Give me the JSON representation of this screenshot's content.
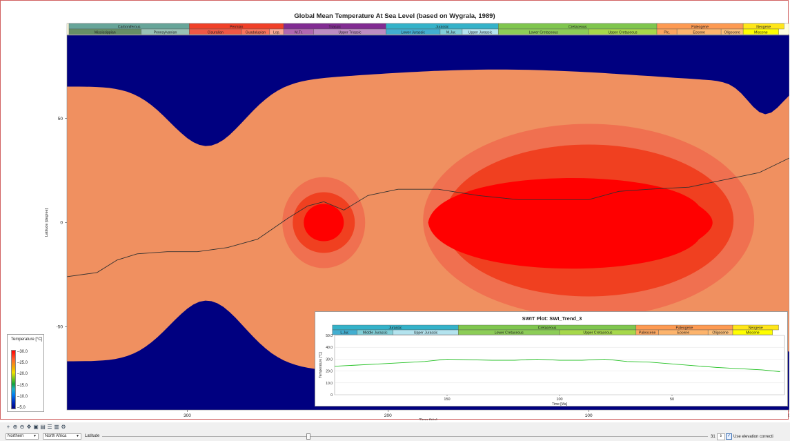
{
  "chart_data": [
    {
      "type": "heatmap",
      "title": "Global Mean Temperature At Sea Level (based on Wygrala, 1989)",
      "xlabel": "Time [Ma]",
      "ylabel": "Latitude [degree]",
      "xlim": [
        360,
        0
      ],
      "ylim": [
        -90,
        90
      ],
      "x_ticks": [
        300,
        200,
        100,
        0
      ],
      "y_ticks": [
        50,
        0,
        -50
      ],
      "colorbar": {
        "title": "Temperature [°C]",
        "ticks": [
          "30.0",
          "25.0",
          "20.0",
          "15.0",
          "10.0",
          "5.0"
        ]
      },
      "color_bands": [
        "#000080",
        "#0030c0",
        "#0060e0",
        "#0090f0",
        "#20b0d0",
        "#10a040",
        "#30c030",
        "#a0d820",
        "#f0e000",
        "#f0b000",
        "#f09060",
        "#f07050",
        "#f04020",
        "#ff0000"
      ],
      "trend_line": {
        "x": [
          360,
          345,
          335,
          325,
          310,
          295,
          280,
          265,
          250,
          240,
          232,
          222,
          210,
          195,
          175,
          155,
          135,
          115,
          100,
          85,
          70,
          50,
          30,
          15,
          0
        ],
        "y": [
          -26,
          -24,
          -18,
          -15,
          -14,
          -14,
          -12,
          -8,
          2,
          8,
          10,
          6,
          13,
          16,
          16,
          13,
          11,
          11,
          11,
          15,
          16,
          17,
          21,
          24,
          31
        ]
      },
      "geologic_periods": [
        {
          "name": "Carboniferous",
          "start": 359,
          "end": 299,
          "color": "#67a599"
        },
        {
          "name": "Permian",
          "start": 299,
          "end": 252,
          "color": "#f04028"
        },
        {
          "name": "Triassic",
          "start": 252,
          "end": 201,
          "color": "#812b92"
        },
        {
          "name": "Jurassic",
          "start": 201,
          "end": 145,
          "color": "#34b2c9"
        },
        {
          "name": "Cretaceous",
          "start": 145,
          "end": 66,
          "color": "#7fc64e"
        },
        {
          "name": "Paleogene",
          "start": 66,
          "end": 23,
          "color": "#fd9a52"
        },
        {
          "name": "Neogene",
          "start": 23,
          "end": 2.6,
          "color": "#ffe619"
        }
      ],
      "geologic_epochs": [
        {
          "name": "Mississippian",
          "start": 359,
          "end": 323,
          "color": "#678f66"
        },
        {
          "name": "Pennsylvanian",
          "start": 323,
          "end": 299,
          "color": "#99c2b5"
        },
        {
          "name": "Cisuralian",
          "start": 299,
          "end": 273,
          "color": "#ef5845"
        },
        {
          "name": "Guadalupian",
          "start": 273,
          "end": 259,
          "color": "#fb745c"
        },
        {
          "name": "Lop.",
          "start": 259,
          "end": 252,
          "color": "#fba794"
        },
        {
          "name": "M.Tr.",
          "start": 252,
          "end": 237,
          "color": "#b168b1"
        },
        {
          "name": "Upper Triassic",
          "start": 237,
          "end": 201,
          "color": "#bd8cc3"
        },
        {
          "name": "Lower Jurassic",
          "start": 201,
          "end": 174,
          "color": "#42aed0"
        },
        {
          "name": "M.Jur.",
          "start": 174,
          "end": 163,
          "color": "#80cfd8"
        },
        {
          "name": "Upper Jurassic",
          "start": 163,
          "end": 145,
          "color": "#b3e3ee"
        },
        {
          "name": "Lower Cretaceous",
          "start": 145,
          "end": 100,
          "color": "#8ccd57"
        },
        {
          "name": "Upper Cretaceous",
          "start": 100,
          "end": 66,
          "color": "#a6d84a"
        },
        {
          "name": "Plc.",
          "start": 66,
          "end": 56,
          "color": "#fda75f"
        },
        {
          "name": "Eocene",
          "start": 56,
          "end": 34,
          "color": "#fdb46c"
        },
        {
          "name": "Oligocene",
          "start": 34,
          "end": 23,
          "color": "#fdc07a"
        },
        {
          "name": "Miocene",
          "start": 23,
          "end": 5.3,
          "color": "#ffff00"
        }
      ]
    },
    {
      "type": "line",
      "title": "SWIT Plot: SWI_Trend_3",
      "xlabel": "Time [Ma]",
      "ylabel": "Temperature [°C]",
      "xlim": [
        200,
        0
      ],
      "ylim": [
        0,
        50
      ],
      "x_ticks": [
        150,
        100,
        50
      ],
      "y_ticks": [
        "50.0",
        "40.0",
        "30.0",
        "20.0",
        "10.0",
        "0"
      ],
      "series": [
        {
          "color": "#20c020",
          "x": [
            200,
            190,
            180,
            170,
            160,
            150,
            140,
            130,
            120,
            110,
            100,
            90,
            80,
            70,
            60,
            50,
            40,
            30,
            20,
            10,
            2
          ],
          "values": [
            24,
            25,
            26,
            27,
            28,
            30,
            29.5,
            29,
            29,
            30,
            29,
            29,
            30,
            28,
            27.5,
            26,
            24.5,
            23,
            22,
            21,
            19.5
          ]
        }
      ],
      "geologic_periods": [
        {
          "name": "Jurassic",
          "start": 201,
          "end": 145,
          "color": "#34b2c9"
        },
        {
          "name": "Cretaceous",
          "start": 145,
          "end": 66,
          "color": "#7fc64e"
        },
        {
          "name": "Paleogene",
          "start": 66,
          "end": 23,
          "color": "#fd9a52"
        },
        {
          "name": "Neogene",
          "start": 23,
          "end": 2.6,
          "color": "#ffe619"
        }
      ],
      "geologic_epochs": [
        {
          "name": "L.Jur.",
          "start": 201,
          "end": 190,
          "color": "#42aed0"
        },
        {
          "name": "Middle Jurassic",
          "start": 190,
          "end": 174,
          "color": "#80cfd8"
        },
        {
          "name": "Upper Jurassic",
          "start": 174,
          "end": 145,
          "color": "#b3e3ee"
        },
        {
          "name": "Lower Cretaceous",
          "start": 145,
          "end": 100,
          "color": "#8ccd57"
        },
        {
          "name": "Upper Cretaceous",
          "start": 100,
          "end": 66,
          "color": "#a6d84a"
        },
        {
          "name": "Paleocene",
          "start": 66,
          "end": 56,
          "color": "#fda75f"
        },
        {
          "name": "Eocene",
          "start": 56,
          "end": 34,
          "color": "#fdb46c"
        },
        {
          "name": "Oligocene",
          "start": 34,
          "end": 23,
          "color": "#fdc07a"
        },
        {
          "name": "Miocene",
          "start": 23,
          "end": 5.3,
          "color": "#ffff00"
        }
      ]
    }
  ],
  "toolbar": {
    "icons": [
      "pointer-icon",
      "zoom-in-icon",
      "zoom-out-icon",
      "pan-icon",
      "zoom-box-icon",
      "layer-icon",
      "list-icon",
      "export-icon",
      "settings-icon"
    ],
    "hemisphere_select": "Northern",
    "region_select": "North Africa",
    "slider_label": "Latitude",
    "slider_fraction": 0.34,
    "spin_value": "31",
    "elevation_checkbox": "Use elevation correcti"
  }
}
